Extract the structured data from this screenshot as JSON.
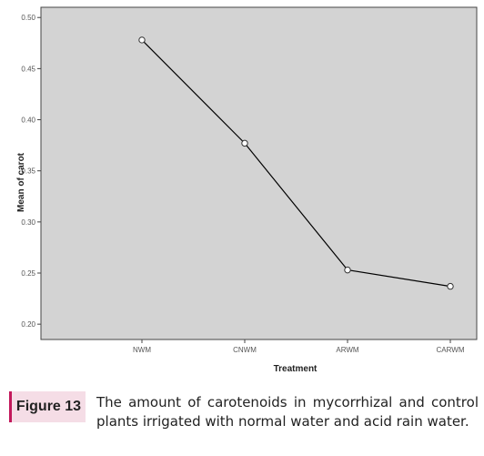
{
  "chart_data": {
    "type": "line",
    "title": "",
    "xlabel": "Treatment",
    "ylabel": "Mean of carot",
    "categories": [
      "NWM",
      "CNWM",
      "ARWM",
      "CARWM"
    ],
    "y_ticks": [
      "0.50",
      "0.45",
      "0.40",
      "0.35",
      "0.30",
      "0.25",
      "0.20"
    ],
    "y_tick_values": [
      0.5,
      0.45,
      0.4,
      0.35,
      0.3,
      0.25,
      0.2
    ],
    "ylim": [
      0.185,
      0.51
    ],
    "series": [
      {
        "values": [
          0.478,
          0.377,
          0.253,
          0.237
        ]
      }
    ],
    "grid": false,
    "plot_background": "#d3d3d3",
    "line_color": "#000000"
  },
  "caption": {
    "label": "Figure 13",
    "text": "The amount of carotenoids in mycorrhizal and control plants irrigated with normal water and acid rain water."
  }
}
